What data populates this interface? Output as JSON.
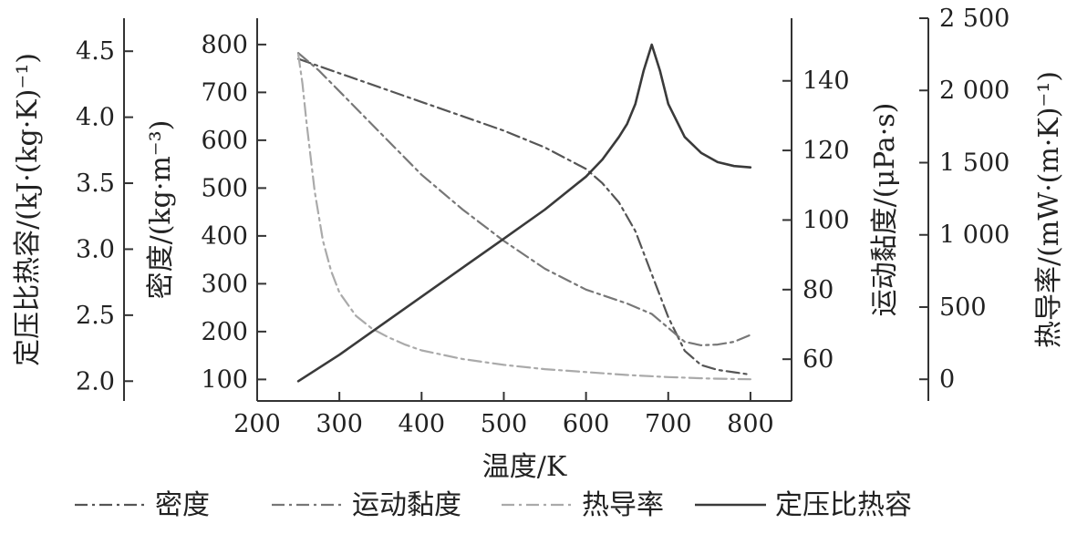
{
  "chart_data": {
    "type": "line",
    "title": "",
    "xlabel": "温度/K",
    "xlim": [
      200,
      850
    ],
    "xticks": [
      "200",
      "300",
      "400",
      "500",
      "600",
      "700",
      "800"
    ],
    "axes": {
      "cp": {
        "label": "定压比热容/(kJ·(kg·K)⁻¹)",
        "ylim": [
          1.85,
          4.75
        ],
        "ticks": [
          "2.0",
          "2.5",
          "3.0",
          "3.5",
          "4.0",
          "4.5"
        ],
        "tick_values": [
          2.0,
          2.5,
          3.0,
          3.5,
          4.0,
          4.5
        ]
      },
      "density": {
        "label": "密度/(kg·m⁻³)",
        "ylim": [
          55,
          855
        ],
        "ticks": [
          "100",
          "200",
          "300",
          "400",
          "500",
          "600",
          "700",
          "800"
        ],
        "tick_values": [
          100,
          200,
          300,
          400,
          500,
          600,
          700,
          800
        ]
      },
      "viscosity": {
        "label": "运动黏度/(μPa·s)",
        "ylim": [
          48,
          158
        ],
        "ticks": [
          "60",
          "80",
          "100",
          "120",
          "140"
        ],
        "tick_values": [
          60,
          80,
          100,
          120,
          140
        ]
      },
      "conductivity": {
        "label": "热导率/(mW·(m·K)⁻¹)",
        "ylim": [
          -150,
          2500
        ],
        "ticks": [
          "0",
          "500",
          "1 000",
          "1 500",
          "2 000",
          "2 500"
        ],
        "tick_values": [
          0,
          500,
          1000,
          1500,
          2000,
          2500
        ]
      }
    },
    "series": [
      {
        "name": "密度",
        "axis": "density",
        "dash": "dash-dot",
        "color": "#555555",
        "x": [
          250,
          300,
          350,
          400,
          450,
          500,
          550,
          600,
          620,
          640,
          660,
          680,
          700,
          720,
          740,
          760,
          780,
          800
        ],
        "y": [
          770,
          740,
          710,
          680,
          650,
          620,
          585,
          540,
          510,
          470,
          410,
          320,
          230,
          160,
          130,
          120,
          115,
          110
        ]
      },
      {
        "name": "运动黏度",
        "axis": "viscosity",
        "dash": "dash-dot",
        "color": "#777777",
        "x": [
          250,
          275,
          300,
          350,
          400,
          450,
          500,
          550,
          600,
          650,
          680,
          700,
          720,
          740,
          760,
          780,
          800
        ],
        "y": [
          148,
          143,
          137,
          125,
          113,
          103,
          94,
          86,
          80,
          76,
          73,
          69,
          65,
          64,
          64.2,
          65,
          67
        ]
      },
      {
        "name": "热导率",
        "axis": "conductivity",
        "dash": "dash-dot",
        "color": "#aaaaaa",
        "x": [
          250,
          255,
          260,
          270,
          280,
          290,
          300,
          320,
          340,
          360,
          380,
          400,
          450,
          500,
          550,
          600,
          650,
          700,
          750,
          800
        ],
        "y": [
          2250,
          2050,
          1780,
          1300,
          960,
          750,
          600,
          440,
          350,
          290,
          240,
          200,
          140,
          100,
          70,
          50,
          30,
          15,
          5,
          0
        ]
      },
      {
        "name": "定压比热容",
        "axis": "cp",
        "dash": "solid",
        "color": "#3a3a3a",
        "x": [
          250,
          300,
          350,
          400,
          450,
          500,
          550,
          600,
          620,
          640,
          650,
          660,
          670,
          680,
          690,
          700,
          720,
          740,
          760,
          780,
          800
        ],
        "y": [
          2.0,
          2.2,
          2.42,
          2.64,
          2.86,
          3.08,
          3.3,
          3.55,
          3.68,
          3.85,
          3.95,
          4.1,
          4.35,
          4.55,
          4.35,
          4.1,
          3.85,
          3.73,
          3.66,
          3.63,
          3.62
        ]
      }
    ],
    "legend": {
      "position": "bottom",
      "items": [
        "密度",
        "运动黏度",
        "热导率",
        "定压比热容"
      ]
    },
    "grid": false
  }
}
